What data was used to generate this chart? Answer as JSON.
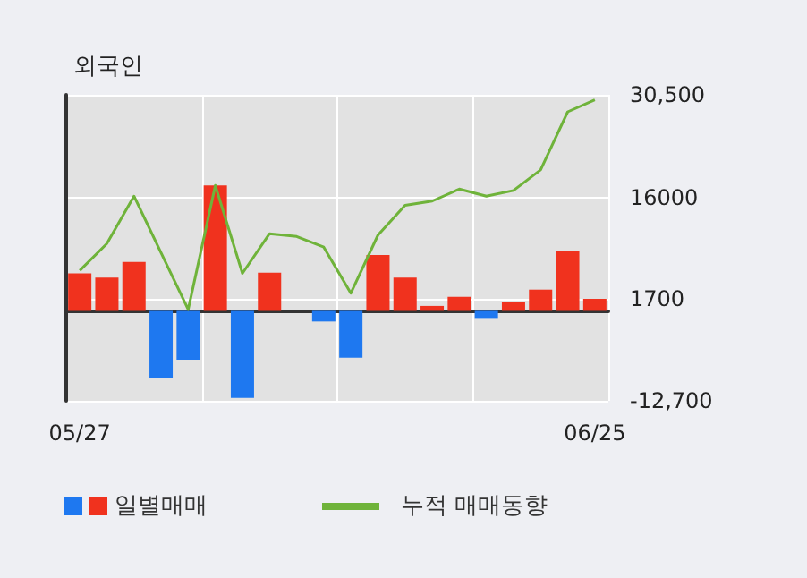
{
  "chart_data": {
    "type": "bar",
    "title": "외국인",
    "categories": [
      "05/27",
      null,
      null,
      null,
      null,
      null,
      null,
      null,
      null,
      null,
      null,
      null,
      null,
      null,
      null,
      null,
      null,
      null,
      null,
      "06/25"
    ],
    "series": [
      {
        "name": "일별매매",
        "colors": [
          "#f0321e",
          "#f0321e",
          "#f0321e",
          "#1e78f0",
          "#1e78f0",
          "#f0321e",
          "#1e78f0",
          "#f0321e",
          "#f0321e",
          "#1e78f0",
          "#1e78f0",
          "#f0321e",
          "#f0321e",
          "#f0321e",
          "#f0321e",
          "#1e78f0",
          "#f0321e",
          "#f0321e",
          "#f0321e",
          "#f0321e"
        ],
        "values": [
          5300,
          4700,
          6900,
          -9400,
          -6900,
          17700,
          -12300,
          5400,
          0,
          -1500,
          -6600,
          7900,
          4700,
          700,
          2000,
          -1000,
          1300,
          3000,
          8400,
          1700
        ]
      },
      {
        "name": "누적 매매동향",
        "type": "line",
        "color": "#6fb33a",
        "values": [
          5700,
          9500,
          16200,
          8200,
          200,
          17700,
          5300,
          10900,
          10500,
          9000,
          2500,
          10700,
          14900,
          15500,
          17200,
          16200,
          17000,
          19900,
          28100,
          29800
        ]
      }
    ],
    "ylim": [
      -12700,
      30500
    ],
    "yticks": [
      {
        "value": -12700,
        "label": "-12,700"
      },
      1700,
      16000,
      {
        "value": 30500,
        "label": "30,500"
      }
    ],
    "grid": true,
    "legend": "bottom left",
    "marker": "none",
    "line_style": "solid"
  }
}
